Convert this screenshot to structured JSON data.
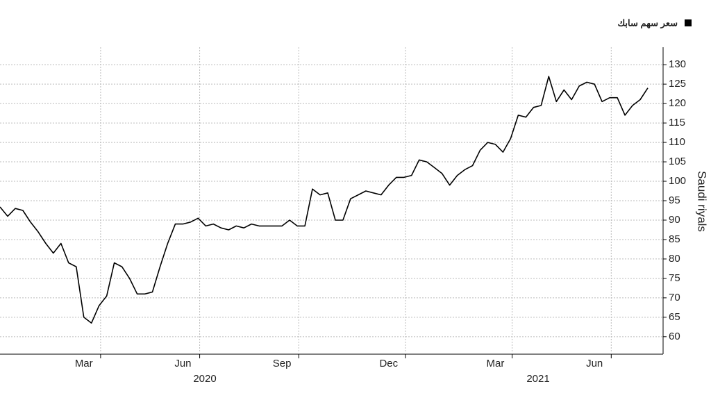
{
  "chart_data": {
    "type": "line",
    "categories": [
      null,
      null,
      null,
      null,
      null,
      null,
      null,
      null,
      null,
      null,
      null,
      "Mar",
      null,
      null,
      null,
      null,
      null,
      null,
      null,
      null,
      null,
      null,
      null,
      null,
      "Jun",
      null,
      null,
      null,
      null,
      null,
      null,
      null,
      null,
      null,
      null,
      null,
      null,
      "Sep",
      null,
      null,
      null,
      null,
      null,
      null,
      null,
      null,
      null,
      null,
      null,
      null,
      null,
      "Dec",
      null,
      null,
      null,
      null,
      null,
      null,
      null,
      null,
      null,
      null,
      null,
      null,
      null,
      "Mar",
      null,
      null,
      null,
      null,
      null,
      null,
      null,
      null,
      null,
      null,
      null,
      null,
      "Jun",
      null,
      null,
      null,
      null,
      null,
      null,
      null
    ],
    "years": [
      "2020",
      "2021"
    ],
    "series": [
      {
        "name": "سعر سهم سابك",
        "color": "#000000",
        "values": [
          93.4,
          91,
          93,
          92.5,
          89.5,
          87,
          84,
          81.5,
          84,
          79,
          78,
          65,
          63.5,
          68,
          70.5,
          79,
          78,
          75,
          71,
          71,
          71.5,
          78,
          84,
          89,
          89,
          89.5,
          90.5,
          88.5,
          89,
          88,
          87.5,
          88.5,
          88,
          89,
          88.5,
          88.5,
          88.5,
          88.5,
          90,
          88.5,
          88.5,
          98,
          96.5,
          97,
          90,
          90,
          95.5,
          96.5,
          97.5,
          97,
          96.5,
          99,
          101,
          101,
          101.5,
          105.5,
          105,
          103.5,
          102,
          99,
          101.5,
          103,
          104,
          108,
          110,
          109.5,
          107.5,
          111,
          117,
          116.5,
          119,
          119.5,
          127,
          120.5,
          123.5,
          121,
          124.5,
          125.5,
          125,
          120.5,
          121.5,
          121.5,
          117,
          119.5,
          121,
          124
        ]
      }
    ],
    "y_label": "Saudi riyals",
    "ylim": [
      55.5,
      134.5
    ],
    "yticks": [
      60,
      65,
      70,
      75,
      80,
      85,
      90,
      95,
      100,
      105,
      110,
      115,
      120,
      125,
      130
    ],
    "grid": true
  }
}
